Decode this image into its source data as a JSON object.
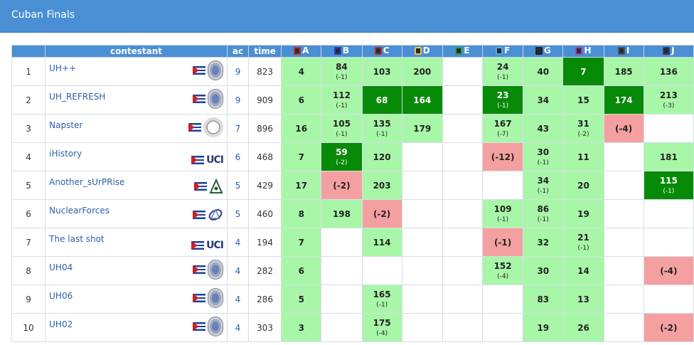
{
  "window": {
    "title": "Cuban Finals"
  },
  "header": {
    "rank": "",
    "contestant": "contestant",
    "ac": "ac",
    "time": "time",
    "problems": [
      {
        "label": "A",
        "color": "#c0302c"
      },
      {
        "label": "B",
        "color": "#2a3fbf"
      },
      {
        "label": "C",
        "color": "#a8342a"
      },
      {
        "label": "D",
        "color": "#f2c24a"
      },
      {
        "label": "E",
        "color": "#2ea04a"
      },
      {
        "label": "F",
        "color": "#4ab2e0"
      },
      {
        "label": "G",
        "color": "#222222"
      },
      {
        "label": "H",
        "color": "#a040c0"
      },
      {
        "label": "I",
        "color": "#555555"
      },
      {
        "label": "J",
        "color": "#3a3a6a"
      }
    ]
  },
  "rows": [
    {
      "rank": "1",
      "name": "UH++",
      "logo": "uh-seal-icon",
      "ac": "9",
      "time": "823",
      "cells": [
        {
          "s": "ok",
          "v": "4",
          "t": ""
        },
        {
          "s": "ok",
          "v": "84",
          "t": "(-1)"
        },
        {
          "s": "ok",
          "v": "103",
          "t": ""
        },
        {
          "s": "ok",
          "v": "200",
          "t": ""
        },
        {
          "s": "none",
          "v": "",
          "t": ""
        },
        {
          "s": "ok",
          "v": "24",
          "t": "(-1)"
        },
        {
          "s": "ok",
          "v": "40",
          "t": ""
        },
        {
          "s": "first",
          "v": "7",
          "t": ""
        },
        {
          "s": "ok",
          "v": "185",
          "t": ""
        },
        {
          "s": "ok",
          "v": "136",
          "t": ""
        }
      ]
    },
    {
      "rank": "2",
      "name": "UH_REFRESH",
      "logo": "uh-seal-icon",
      "ac": "9",
      "time": "909",
      "cells": [
        {
          "s": "ok",
          "v": "6",
          "t": ""
        },
        {
          "s": "ok",
          "v": "112",
          "t": "(-1)"
        },
        {
          "s": "first",
          "v": "68",
          "t": ""
        },
        {
          "s": "first",
          "v": "164",
          "t": ""
        },
        {
          "s": "none",
          "v": "",
          "t": ""
        },
        {
          "s": "first",
          "v": "23",
          "t": "(-1)"
        },
        {
          "s": "ok",
          "v": "34",
          "t": ""
        },
        {
          "s": "ok",
          "v": "15",
          "t": ""
        },
        {
          "s": "first",
          "v": "174",
          "t": ""
        },
        {
          "s": "ok",
          "v": "213",
          "t": "(-3)"
        }
      ]
    },
    {
      "rank": "3",
      "name": "Napster",
      "logo": "round-seal-icon",
      "ac": "7",
      "time": "896",
      "cells": [
        {
          "s": "ok",
          "v": "16",
          "t": ""
        },
        {
          "s": "ok",
          "v": "105",
          "t": "(-1)"
        },
        {
          "s": "ok",
          "v": "135",
          "t": "(-1)"
        },
        {
          "s": "ok",
          "v": "179",
          "t": ""
        },
        {
          "s": "none",
          "v": "",
          "t": ""
        },
        {
          "s": "ok",
          "v": "167",
          "t": "(-7)"
        },
        {
          "s": "ok",
          "v": "43",
          "t": ""
        },
        {
          "s": "ok",
          "v": "31",
          "t": "(-2)"
        },
        {
          "s": "fail",
          "v": "(-4)",
          "t": ""
        },
        {
          "s": "none",
          "v": "",
          "t": ""
        }
      ]
    },
    {
      "rank": "4",
      "name": "iHistory",
      "logo": "uci-logo-icon",
      "logo_text": "UCI",
      "ac": "6",
      "time": "468",
      "cells": [
        {
          "s": "ok",
          "v": "7",
          "t": ""
        },
        {
          "s": "first",
          "v": "59",
          "t": "(-2)"
        },
        {
          "s": "ok",
          "v": "120",
          "t": ""
        },
        {
          "s": "none",
          "v": "",
          "t": ""
        },
        {
          "s": "none",
          "v": "",
          "t": ""
        },
        {
          "s": "fail",
          "v": "(-12)",
          "t": ""
        },
        {
          "s": "ok",
          "v": "30",
          "t": "(-1)"
        },
        {
          "s": "ok",
          "v": "11",
          "t": ""
        },
        {
          "s": "none",
          "v": "",
          "t": ""
        },
        {
          "s": "ok",
          "v": "181",
          "t": ""
        }
      ]
    },
    {
      "rank": "5",
      "name": "Another_sUrPRise",
      "logo": "triangle-logo-icon",
      "ac": "5",
      "time": "429",
      "cells": [
        {
          "s": "ok",
          "v": "17",
          "t": ""
        },
        {
          "s": "fail",
          "v": "(-2)",
          "t": ""
        },
        {
          "s": "ok",
          "v": "203",
          "t": ""
        },
        {
          "s": "none",
          "v": "",
          "t": ""
        },
        {
          "s": "none",
          "v": "",
          "t": ""
        },
        {
          "s": "none",
          "v": "",
          "t": ""
        },
        {
          "s": "ok",
          "v": "34",
          "t": "(-1)"
        },
        {
          "s": "ok",
          "v": "20",
          "t": ""
        },
        {
          "s": "none",
          "v": "",
          "t": ""
        },
        {
          "s": "first",
          "v": "115",
          "t": "(-1)"
        }
      ]
    },
    {
      "rank": "6",
      "name": "NuclearForces",
      "logo": "ring-logo-icon",
      "ac": "5",
      "time": "460",
      "cells": [
        {
          "s": "ok",
          "v": "8",
          "t": ""
        },
        {
          "s": "ok",
          "v": "198",
          "t": ""
        },
        {
          "s": "fail",
          "v": "(-2)",
          "t": ""
        },
        {
          "s": "none",
          "v": "",
          "t": ""
        },
        {
          "s": "none",
          "v": "",
          "t": ""
        },
        {
          "s": "ok",
          "v": "109",
          "t": "(-1)"
        },
        {
          "s": "ok",
          "v": "86",
          "t": "(-1)"
        },
        {
          "s": "ok",
          "v": "19",
          "t": ""
        },
        {
          "s": "none",
          "v": "",
          "t": ""
        },
        {
          "s": "none",
          "v": "",
          "t": ""
        }
      ]
    },
    {
      "rank": "7",
      "name": "The last shot",
      "logo": "uci-logo-icon",
      "logo_text": "UCI",
      "ac": "4",
      "time": "194",
      "cells": [
        {
          "s": "ok",
          "v": "7",
          "t": ""
        },
        {
          "s": "none",
          "v": "",
          "t": ""
        },
        {
          "s": "ok",
          "v": "114",
          "t": ""
        },
        {
          "s": "none",
          "v": "",
          "t": ""
        },
        {
          "s": "none",
          "v": "",
          "t": ""
        },
        {
          "s": "fail",
          "v": "(-1)",
          "t": ""
        },
        {
          "s": "ok",
          "v": "32",
          "t": ""
        },
        {
          "s": "ok",
          "v": "21",
          "t": "(-1)"
        },
        {
          "s": "none",
          "v": "",
          "t": ""
        },
        {
          "s": "none",
          "v": "",
          "t": ""
        }
      ]
    },
    {
      "rank": "8",
      "name": "UH04",
      "logo": "uh-seal-icon",
      "ac": "4",
      "time": "282",
      "cells": [
        {
          "s": "ok",
          "v": "6",
          "t": ""
        },
        {
          "s": "none",
          "v": "",
          "t": ""
        },
        {
          "s": "none",
          "v": "",
          "t": ""
        },
        {
          "s": "none",
          "v": "",
          "t": ""
        },
        {
          "s": "none",
          "v": "",
          "t": ""
        },
        {
          "s": "ok",
          "v": "152",
          "t": "(-4)"
        },
        {
          "s": "ok",
          "v": "30",
          "t": ""
        },
        {
          "s": "ok",
          "v": "14",
          "t": ""
        },
        {
          "s": "none",
          "v": "",
          "t": ""
        },
        {
          "s": "fail",
          "v": "(-4)",
          "t": ""
        }
      ]
    },
    {
      "rank": "9",
      "name": "UH06",
      "logo": "uh-seal-icon",
      "ac": "4",
      "time": "286",
      "cells": [
        {
          "s": "ok",
          "v": "5",
          "t": ""
        },
        {
          "s": "none",
          "v": "",
          "t": ""
        },
        {
          "s": "ok",
          "v": "165",
          "t": "(-1)"
        },
        {
          "s": "none",
          "v": "",
          "t": ""
        },
        {
          "s": "none",
          "v": "",
          "t": ""
        },
        {
          "s": "none",
          "v": "",
          "t": ""
        },
        {
          "s": "ok",
          "v": "83",
          "t": ""
        },
        {
          "s": "ok",
          "v": "13",
          "t": ""
        },
        {
          "s": "none",
          "v": "",
          "t": ""
        },
        {
          "s": "none",
          "v": "",
          "t": ""
        }
      ]
    },
    {
      "rank": "10",
      "name": "UH02",
      "logo": "uh-seal-icon",
      "ac": "4",
      "time": "303",
      "cells": [
        {
          "s": "ok",
          "v": "3",
          "t": ""
        },
        {
          "s": "none",
          "v": "",
          "t": ""
        },
        {
          "s": "ok",
          "v": "175",
          "t": "(-4)"
        },
        {
          "s": "none",
          "v": "",
          "t": ""
        },
        {
          "s": "none",
          "v": "",
          "t": ""
        },
        {
          "s": "none",
          "v": "",
          "t": ""
        },
        {
          "s": "ok",
          "v": "19",
          "t": ""
        },
        {
          "s": "ok",
          "v": "26",
          "t": ""
        },
        {
          "s": "none",
          "v": "",
          "t": ""
        },
        {
          "s": "fail",
          "v": "(-2)",
          "t": ""
        }
      ]
    }
  ]
}
